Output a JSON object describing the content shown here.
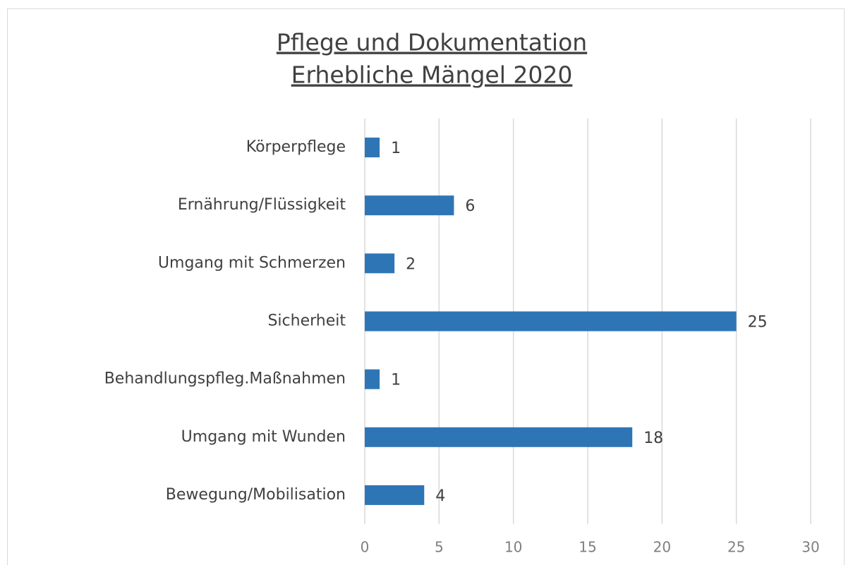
{
  "chart_data": {
    "type": "barh",
    "title": [
      "Pflege und Dokumentation",
      "Erhebliche Mängel 2020"
    ],
    "categories": [
      "Körperpflege",
      "Ernährung/Flüssigkeit",
      "Umgang mit Schmerzen",
      "Sicherheit",
      "Behandlungspfleg.Maßnahmen",
      "Umgang mit Wunden",
      "Bewegung/Mobilisation"
    ],
    "values": [
      1,
      6,
      2,
      25,
      1,
      18,
      4
    ],
    "color": "#2e75b6",
    "xlim": [
      0,
      30
    ],
    "xticks": [
      0,
      5,
      10,
      15,
      20,
      25,
      30
    ],
    "grid": true
  }
}
